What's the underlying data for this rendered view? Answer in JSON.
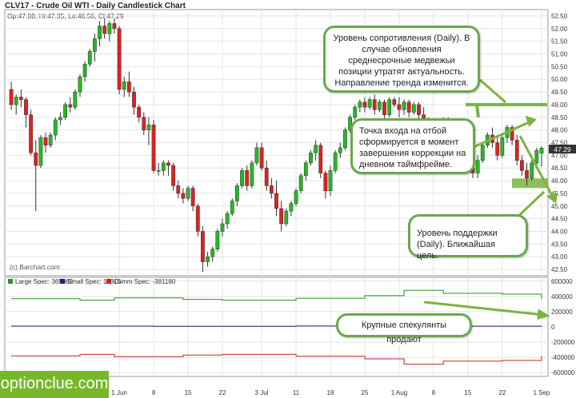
{
  "header": {
    "title": "CLV17 - Crude Oil WTI - Daily Candlestick Chart",
    "ohlc": "Op:47.08, Hi:47.35, Lo:46.56, Cl:47.29"
  },
  "watermark": "(c) Barchart.com",
  "cot_legend": {
    "large": "Large Spec: 365865",
    "small": "Small Spec: 15315",
    "comm": "Comm Spec: -381180"
  },
  "callouts": {
    "resistance": "Уровень сопротивления (Daily). В случае обновления среднесрочные медвежьи позиции утратят актуальность. Направление тренда изменится.",
    "entry": "Точка входа на отбой сформируется в момент завершения коррекции на дневном таймфрейме.",
    "support": "Уровень поддержки (Daily). Ближайшая цель.",
    "speculators": "Крупные спекулянты продают"
  },
  "logo": "optionclue.com",
  "price_badge": "47.29",
  "colors": {
    "up": "#22bb22",
    "down": "#dd2222",
    "large": "#2e8b2e",
    "small": "#1a237e",
    "comm": "#cc2222",
    "callout_border": "#6aa84f",
    "level": "#7cb342"
  },
  "chart_data": [
    {
      "type": "candlestick",
      "title": "CLV17 - Crude Oil WTI - Daily Candlestick Chart",
      "y_ticks": [
        "52.50",
        "52.00",
        "51.50",
        "51.00",
        "50.50",
        "50.00",
        "49.50",
        "49.00",
        "48.50",
        "48.00",
        "47.50",
        "47.00",
        "46.50",
        "46.00",
        "45.50",
        "45.00",
        "44.50",
        "44.00",
        "43.50",
        "43.00",
        "42.50"
      ],
      "ylim": [
        42.25,
        52.75
      ],
      "x_tick_labels": [
        "1 Jun",
        "8",
        "15",
        "22",
        "3 Jul",
        "11",
        "18",
        "25",
        "1 Aug",
        "8",
        "15",
        "22",
        "1 Sep"
      ],
      "x_tick_index": [
        22,
        29,
        36,
        43,
        51,
        58,
        65,
        72,
        79,
        86,
        93,
        100,
        108
      ],
      "candles": [
        [
          49.6,
          49.9,
          48.8,
          49.0
        ],
        [
          49.0,
          49.4,
          48.6,
          49.3
        ],
        [
          49.3,
          49.6,
          48.9,
          49.2
        ],
        [
          49.2,
          49.3,
          48.1,
          48.6
        ],
        [
          48.6,
          48.8,
          47.0,
          47.1
        ],
        [
          47.1,
          47.6,
          44.8,
          46.6
        ],
        [
          46.6,
          47.8,
          46.5,
          47.7
        ],
        [
          47.7,
          47.9,
          47.1,
          47.4
        ],
        [
          47.4,
          47.9,
          47.3,
          47.8
        ],
        [
          47.8,
          48.5,
          47.6,
          48.4
        ],
        [
          48.4,
          48.7,
          48.2,
          48.5
        ],
        [
          48.5,
          49.1,
          48.4,
          49.0
        ],
        [
          49.0,
          49.3,
          48.7,
          48.9
        ],
        [
          48.9,
          49.6,
          48.8,
          49.5
        ],
        [
          49.5,
          50.2,
          49.3,
          50.1
        ],
        [
          50.1,
          50.7,
          49.9,
          50.6
        ],
        [
          50.6,
          51.2,
          50.5,
          51.1
        ],
        [
          51.1,
          51.8,
          50.7,
          51.6
        ],
        [
          51.6,
          52.3,
          51.3,
          52.1
        ],
        [
          52.1,
          52.4,
          51.6,
          51.8
        ],
        [
          51.8,
          52.3,
          51.5,
          52.2
        ],
        [
          52.2,
          52.4,
          51.8,
          52.0
        ],
        [
          52.0,
          52.1,
          49.4,
          49.6
        ],
        [
          49.6,
          50.1,
          49.3,
          49.9
        ],
        [
          49.9,
          50.3,
          49.3,
          49.5
        ],
        [
          49.5,
          49.7,
          48.6,
          48.9
        ],
        [
          48.9,
          49.0,
          48.3,
          48.5
        ],
        [
          48.5,
          48.7,
          47.8,
          48.0
        ],
        [
          48.0,
          48.5,
          47.4,
          48.2
        ],
        [
          48.2,
          48.4,
          46.3,
          46.4
        ],
        [
          46.4,
          46.7,
          46.2,
          46.4
        ],
        [
          46.4,
          46.8,
          46.2,
          46.7
        ],
        [
          46.7,
          46.8,
          46.2,
          46.6
        ],
        [
          46.6,
          46.7,
          45.6,
          45.8
        ],
        [
          45.8,
          46.0,
          45.3,
          45.5
        ],
        [
          45.5,
          45.7,
          45.1,
          45.3
        ],
        [
          45.3,
          45.8,
          45.2,
          45.7
        ],
        [
          45.7,
          45.8,
          44.8,
          45.0
        ],
        [
          45.0,
          45.1,
          43.8,
          44.0
        ],
        [
          44.0,
          44.2,
          42.4,
          42.8
        ],
        [
          42.8,
          43.2,
          42.6,
          43.0
        ],
        [
          43.0,
          43.4,
          42.8,
          43.3
        ],
        [
          43.3,
          44.1,
          43.2,
          44.0
        ],
        [
          44.0,
          44.5,
          43.8,
          44.3
        ],
        [
          44.3,
          44.8,
          44.1,
          44.7
        ],
        [
          44.7,
          45.3,
          44.6,
          45.2
        ],
        [
          45.2,
          45.9,
          45.0,
          45.8
        ],
        [
          45.8,
          46.5,
          45.7,
          46.4
        ],
        [
          46.4,
          46.6,
          45.6,
          45.8
        ],
        [
          45.8,
          46.8,
          45.7,
          46.7
        ],
        [
          46.7,
          47.5,
          46.6,
          47.3
        ],
        [
          47.3,
          47.5,
          46.4,
          46.5
        ],
        [
          46.5,
          46.8,
          45.6,
          45.8
        ],
        [
          45.8,
          46.1,
          45.3,
          45.5
        ],
        [
          45.5,
          46.0,
          44.6,
          44.9
        ],
        [
          44.9,
          45.2,
          44.0,
          44.3
        ],
        [
          44.3,
          44.9,
          44.2,
          44.8
        ],
        [
          44.8,
          45.2,
          44.6,
          45.1
        ],
        [
          45.1,
          45.7,
          45.0,
          45.6
        ],
        [
          45.6,
          46.3,
          45.5,
          46.2
        ],
        [
          46.2,
          46.8,
          46.0,
          46.7
        ],
        [
          46.7,
          47.2,
          46.6,
          47.1
        ],
        [
          47.1,
          47.6,
          46.8,
          47.4
        ],
        [
          47.4,
          47.5,
          46.1,
          46.3
        ],
        [
          46.3,
          46.4,
          45.3,
          45.6
        ],
        [
          45.6,
          46.6,
          45.4,
          46.4
        ],
        [
          46.4,
          47.2,
          46.3,
          47.1
        ],
        [
          47.1,
          47.5,
          46.9,
          47.3
        ],
        [
          47.3,
          48.1,
          47.2,
          48.0
        ],
        [
          48.0,
          48.6,
          47.9,
          48.5
        ],
        [
          48.5,
          49.0,
          48.4,
          48.9
        ],
        [
          48.9,
          49.2,
          48.7,
          49.1
        ],
        [
          49.1,
          49.3,
          48.7,
          48.9
        ],
        [
          48.9,
          49.3,
          48.8,
          49.2
        ],
        [
          49.2,
          49.4,
          48.6,
          48.8
        ],
        [
          48.8,
          49.2,
          48.7,
          49.1
        ],
        [
          49.1,
          49.2,
          48.4,
          48.6
        ],
        [
          48.6,
          49.3,
          48.5,
          49.2
        ],
        [
          49.2,
          49.3,
          48.9,
          49.0
        ],
        [
          49.0,
          49.3,
          48.5,
          48.8
        ],
        [
          48.8,
          49.2,
          48.6,
          49.1
        ],
        [
          49.1,
          49.2,
          48.5,
          48.7
        ],
        [
          48.7,
          49.1,
          48.6,
          49.0
        ],
        [
          49.0,
          49.1,
          48.4,
          48.6
        ],
        [
          48.6,
          48.9,
          48.1,
          48.3
        ],
        [
          48.3,
          48.5,
          47.9,
          48.1
        ],
        [
          48.1,
          48.3,
          47.7,
          47.9
        ],
        [
          47.9,
          48.2,
          47.6,
          48.0
        ],
        [
          48.0,
          48.5,
          47.9,
          48.4
        ],
        [
          48.4,
          48.5,
          47.7,
          47.8
        ],
        [
          47.8,
          48.1,
          47.5,
          47.6
        ],
        [
          47.6,
          48.3,
          47.5,
          48.2
        ],
        [
          48.2,
          48.4,
          46.7,
          46.9
        ],
        [
          46.9,
          47.2,
          46.3,
          46.5
        ],
        [
          46.5,
          46.8,
          46.1,
          46.3
        ],
        [
          46.3,
          47.0,
          46.1,
          46.8
        ],
        [
          46.8,
          47.5,
          46.7,
          47.4
        ],
        [
          47.4,
          47.9,
          47.3,
          47.8
        ],
        [
          47.8,
          48.1,
          47.3,
          47.5
        ],
        [
          47.5,
          47.8,
          46.8,
          47.0
        ],
        [
          47.0,
          47.8,
          46.9,
          47.7
        ],
        [
          47.7,
          48.2,
          47.5,
          48.1
        ],
        [
          48.1,
          48.2,
          47.4,
          47.6
        ],
        [
          47.6,
          47.8,
          46.6,
          46.8
        ],
        [
          46.8,
          47.0,
          46.2,
          46.4
        ],
        [
          46.4,
          46.7,
          45.8,
          46.1
        ],
        [
          46.1,
          46.8,
          46.0,
          46.7
        ],
        [
          46.7,
          47.3,
          46.6,
          47.2
        ],
        [
          47.08,
          47.35,
          46.56,
          47.29
        ]
      ],
      "levels": {
        "resistance": 49.0,
        "support": 45.9
      }
    },
    {
      "type": "line",
      "title": "COT",
      "y_ticks": [
        "600000",
        "400000",
        "200000",
        "0",
        "-200000",
        "-400000",
        "-600000"
      ],
      "ylim": [
        -650000,
        650000
      ],
      "series": [
        {
          "name": "Large Spec",
          "x": [
            0,
            14,
            21,
            35,
            43,
            58,
            72,
            80,
            88,
            100,
            110
          ],
          "values": [
            370000,
            350000,
            380000,
            360000,
            350000,
            375000,
            410000,
            480000,
            440000,
            430000,
            365865
          ]
        },
        {
          "name": "Small Spec",
          "x": [
            0,
            29,
            58,
            88,
            110
          ],
          "values": [
            10000,
            8000,
            12000,
            9000,
            15315
          ]
        },
        {
          "name": "Comm Spec",
          "x": [
            0,
            14,
            21,
            35,
            43,
            58,
            72,
            80,
            88,
            100,
            110
          ],
          "values": [
            -380000,
            -360000,
            -390000,
            -370000,
            -360000,
            -385000,
            -420000,
            -490000,
            -450000,
            -440000,
            -381180
          ]
        }
      ]
    }
  ]
}
